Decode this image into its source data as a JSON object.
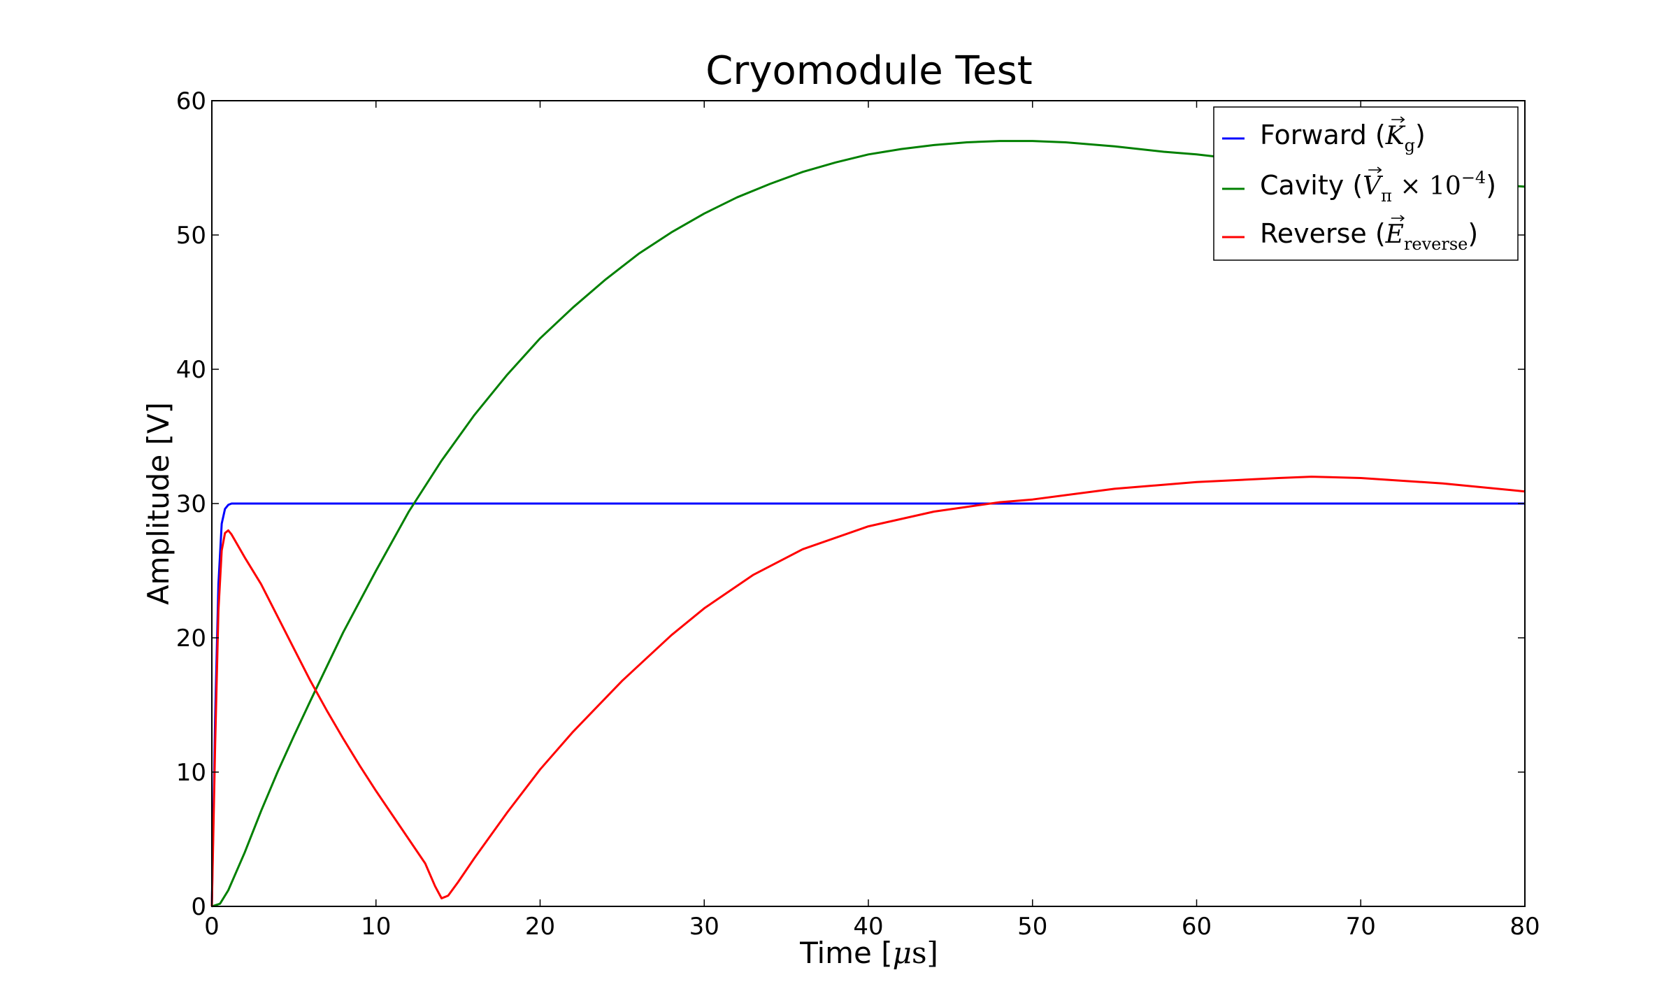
{
  "chart_data": {
    "type": "line",
    "title": "Cryomodule Test",
    "xlabel": "Time [μs]",
    "ylabel": "Amplitude [V]",
    "xlim": [
      0,
      80
    ],
    "ylim": [
      0,
      60
    ],
    "xticks": [
      0,
      10,
      20,
      30,
      40,
      50,
      60,
      70,
      80
    ],
    "yticks": [
      0,
      10,
      20,
      30,
      40,
      50,
      60
    ],
    "grid": false,
    "legend_position": "top-right",
    "series": [
      {
        "name": "Forward (K_g)",
        "legend_main": "Forward (",
        "legend_sym": "K",
        "legend_sub": "g",
        "legend_extra": "",
        "legend_close": ")",
        "color": "#0000ff",
        "x": [
          0,
          0.2,
          0.4,
          0.6,
          0.8,
          1.0,
          1.2,
          1.5,
          2.0,
          5,
          10,
          20,
          30,
          40,
          50,
          60,
          70,
          80
        ],
        "y": [
          0,
          14,
          24,
          28.5,
          29.6,
          29.9,
          30,
          30,
          30,
          30,
          30,
          30,
          30,
          30,
          30,
          30,
          30,
          30
        ]
      },
      {
        "name": "Cavity (V_π × 10^-4)",
        "legend_main": "Cavity (",
        "legend_sym": "V",
        "legend_sub": "π",
        "legend_extra": " × 10",
        "legend_sup": "−4",
        "legend_close": ")",
        "color": "#008000",
        "x": [
          0,
          0.5,
          1,
          2,
          3,
          4,
          5,
          6,
          8,
          10,
          12,
          14,
          16,
          18,
          20,
          22,
          24,
          26,
          28,
          30,
          32,
          34,
          36,
          38,
          40,
          42,
          44,
          46,
          48,
          50,
          52,
          55,
          58,
          60,
          65,
          70,
          75,
          80
        ],
        "y": [
          0,
          0.2,
          1.2,
          4.0,
          7.1,
          10.0,
          12.7,
          15.3,
          20.4,
          25.0,
          29.4,
          33.2,
          36.6,
          39.6,
          42.3,
          44.6,
          46.7,
          48.6,
          50.2,
          51.6,
          52.8,
          53.8,
          54.7,
          55.4,
          56.0,
          56.4,
          56.7,
          56.9,
          57.0,
          57.0,
          56.9,
          56.6,
          56.2,
          56.0,
          55.3,
          54.6,
          54.0,
          53.6
        ]
      },
      {
        "name": "Reverse (E_reverse)",
        "legend_main": "Reverse (",
        "legend_sym": "E",
        "legend_sub": "reverse",
        "legend_extra": "",
        "legend_close": ")",
        "color": "#ff0000",
        "x": [
          0,
          0.2,
          0.4,
          0.6,
          0.8,
          1.0,
          1.2,
          2,
          3,
          4,
          5,
          6,
          7,
          8,
          9,
          10,
          11,
          12,
          13,
          13.6,
          14,
          14.4,
          15,
          16,
          18,
          20,
          22,
          25,
          28,
          30,
          33,
          36,
          40,
          44,
          48,
          50,
          55,
          60,
          65,
          67,
          70,
          75,
          80
        ],
        "y": [
          0,
          12,
          22,
          26.5,
          27.8,
          28.0,
          27.7,
          26.0,
          24.0,
          21.6,
          19.2,
          16.8,
          14.6,
          12.5,
          10.5,
          8.6,
          6.8,
          5.0,
          3.2,
          1.5,
          0.6,
          0.8,
          1.8,
          3.6,
          7.0,
          10.2,
          13.0,
          16.8,
          20.2,
          22.2,
          24.7,
          26.6,
          28.3,
          29.4,
          30.1,
          30.3,
          31.1,
          31.6,
          31.9,
          32.0,
          31.9,
          31.5,
          30.9
        ]
      }
    ]
  }
}
